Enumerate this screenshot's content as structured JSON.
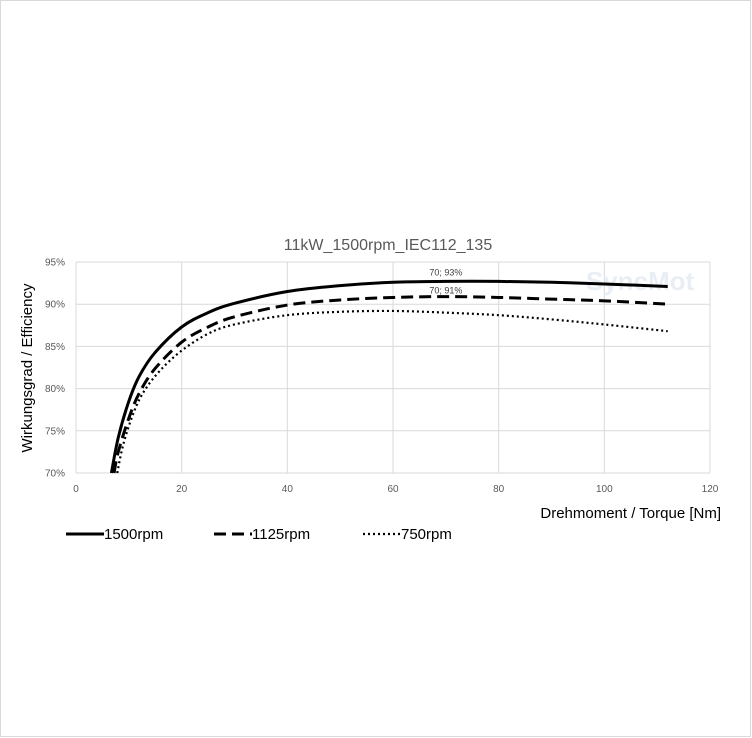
{
  "chart_data": {
    "type": "line",
    "title": "11kW_1500rpm_IEC112_135",
    "xlabel": "Drehmoment / Torque [Nm]",
    "ylabel": "Wirkungsgrad / Efficiency",
    "xlim": [
      0,
      120
    ],
    "ylim": [
      70,
      95
    ],
    "x_ticks": [
      "0",
      "20",
      "40",
      "60",
      "80",
      "100",
      "120"
    ],
    "y_ticks": [
      "70%",
      "75%",
      "80%",
      "85%",
      "90%",
      "95%"
    ],
    "grid": true,
    "legend_position": "bottom-left",
    "watermark": "SyncMot",
    "series": [
      {
        "name": "1500rpm",
        "style": "solid",
        "x": [
          6.7,
          8,
          10,
          12,
          15,
          20,
          25,
          30,
          40,
          50,
          60,
          70,
          80,
          90,
          100,
          112
        ],
        "values": [
          70,
          74.2,
          78.5,
          81.5,
          84.3,
          87.3,
          89.0,
          90.1,
          91.5,
          92.2,
          92.6,
          92.7,
          92.7,
          92.6,
          92.4,
          92.1
        ]
      },
      {
        "name": "1125rpm",
        "style": "dashed",
        "x": [
          7.2,
          8,
          10,
          12,
          15,
          20,
          25,
          30,
          40,
          50,
          60,
          70,
          80,
          90,
          100,
          112
        ],
        "values": [
          70,
          72.5,
          76.5,
          79.5,
          82.4,
          85.5,
          87.3,
          88.5,
          89.9,
          90.5,
          90.8,
          90.9,
          90.8,
          90.6,
          90.4,
          90.0
        ]
      },
      {
        "name": "750rpm",
        "style": "dotted",
        "x": [
          7.8,
          9,
          11,
          13,
          16,
          20,
          25,
          30,
          40,
          50,
          60,
          70,
          80,
          90,
          100,
          112
        ],
        "values": [
          70,
          73.5,
          77.3,
          79.8,
          82.2,
          84.5,
          86.5,
          87.6,
          88.7,
          89.1,
          89.2,
          89.0,
          88.7,
          88.2,
          87.6,
          86.8
        ]
      }
    ],
    "annotations": [
      {
        "text": "70; 93%",
        "x": 70,
        "y": 92.7
      },
      {
        "text": "70; 91%",
        "x": 70,
        "y": 90.9
      }
    ]
  }
}
